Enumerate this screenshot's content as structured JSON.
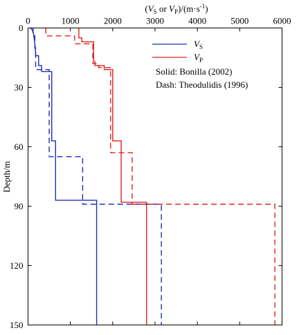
{
  "chart_data": {
    "type": "line",
    "title": "",
    "xlabel_parts": [
      "(",
      "V",
      "S",
      " or ",
      "V",
      "P",
      ")/(m·s",
      "-1",
      ")"
    ],
    "ylabel": "Depth/m",
    "xlim": [
      0,
      6000
    ],
    "ylim": [
      0,
      150
    ],
    "x_axis_position": "top",
    "y_inverted": true,
    "xticks": [
      0,
      1000,
      2000,
      3000,
      4000,
      5000,
      6000
    ],
    "yticks": [
      0,
      30,
      60,
      90,
      120,
      150
    ],
    "grid": false,
    "legend": {
      "placement": "top-right",
      "entries": [
        {
          "symbol": "V",
          "sub": "S",
          "color": "#1f2db3"
        },
        {
          "symbol": "V",
          "sub": "P",
          "color": "#e02020"
        }
      ],
      "notes": [
        "Solid: Bonilla (2002)",
        "Dash: Theodulidis (1996)"
      ]
    },
    "series": [
      {
        "key": "vs_solid",
        "color": "#1f2db3",
        "dash": false,
        "points": [
          [
            60,
            0
          ],
          [
            100,
            1
          ],
          [
            130,
            3
          ],
          [
            150,
            6
          ],
          [
            170,
            10
          ],
          [
            180,
            13
          ],
          [
            180,
            14
          ],
          [
            250,
            14
          ],
          [
            250,
            19
          ],
          [
            320,
            19
          ],
          [
            320,
            22
          ],
          [
            560,
            22
          ],
          [
            560,
            57
          ],
          [
            650,
            57
          ],
          [
            650,
            87
          ],
          [
            1620,
            87
          ],
          [
            1620,
            150
          ]
        ]
      },
      {
        "key": "vp_solid",
        "color": "#e02020",
        "dash": false,
        "points": [
          [
            1200,
            0
          ],
          [
            1200,
            5
          ],
          [
            1270,
            5
          ],
          [
            1270,
            7
          ],
          [
            1550,
            7
          ],
          [
            1550,
            17
          ],
          [
            1580,
            17
          ],
          [
            1580,
            19
          ],
          [
            1800,
            19
          ],
          [
            1800,
            21
          ],
          [
            2000,
            21
          ],
          [
            2000,
            57
          ],
          [
            2200,
            57
          ],
          [
            2200,
            88
          ],
          [
            2800,
            88
          ],
          [
            2800,
            150
          ]
        ]
      },
      {
        "key": "vs_dash",
        "color": "#1f2db3",
        "dash": true,
        "points": [
          [
            120,
            0
          ],
          [
            120,
            3
          ],
          [
            160,
            3
          ],
          [
            160,
            10
          ],
          [
            180,
            10
          ],
          [
            180,
            21
          ],
          [
            500,
            21
          ],
          [
            500,
            65
          ],
          [
            1290,
            65
          ],
          [
            1290,
            89
          ],
          [
            3150,
            89
          ],
          [
            3150,
            150
          ]
        ]
      },
      {
        "key": "vp_dash",
        "color": "#e02020",
        "dash": true,
        "points": [
          [
            420,
            0
          ],
          [
            420,
            4
          ],
          [
            1100,
            4
          ],
          [
            1100,
            8
          ],
          [
            1530,
            8
          ],
          [
            1530,
            18
          ],
          [
            1670,
            18
          ],
          [
            1670,
            20
          ],
          [
            1950,
            20
          ],
          [
            1950,
            63
          ],
          [
            2460,
            63
          ],
          [
            2460,
            89
          ],
          [
            5830,
            89
          ],
          [
            5830,
            150
          ]
        ]
      }
    ]
  }
}
